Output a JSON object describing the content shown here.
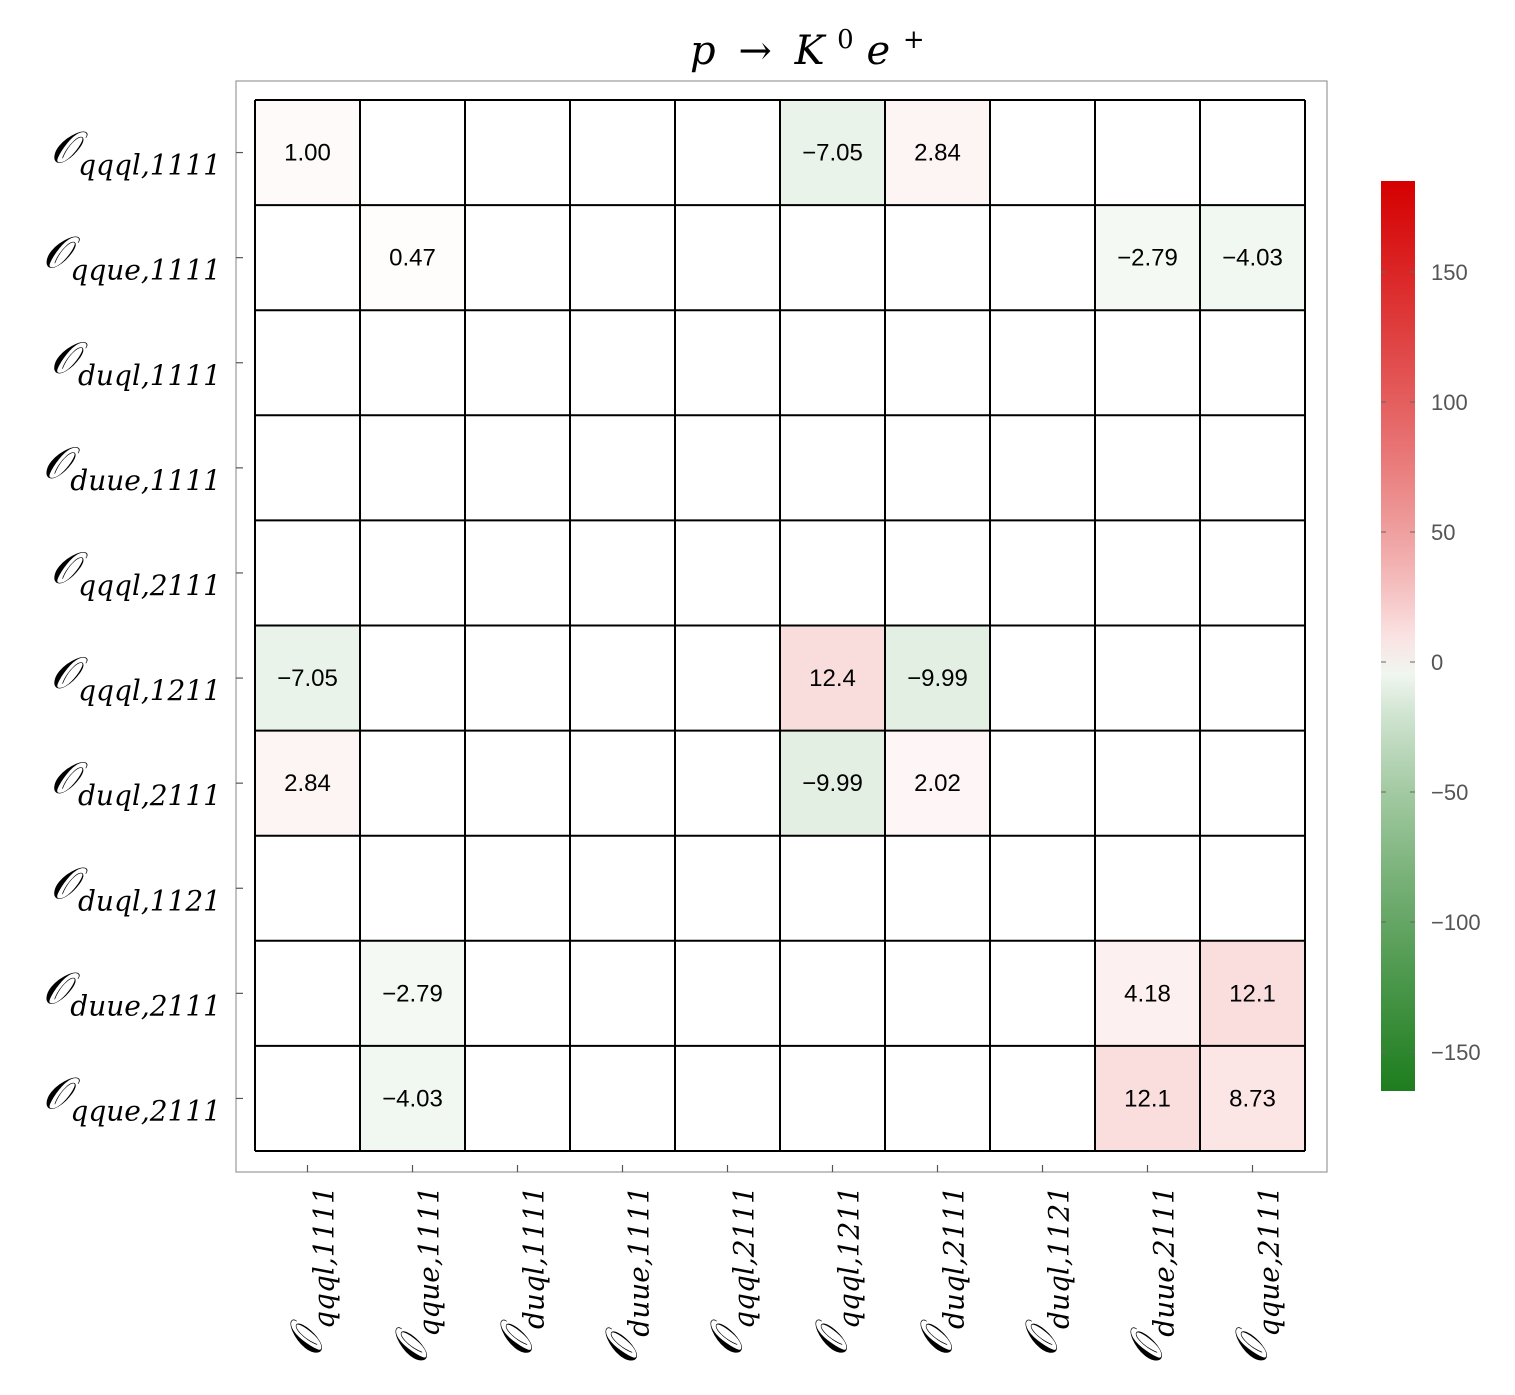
{
  "chart_data": {
    "type": "heatmap",
    "title": "p → K⁰e⁺",
    "title_parts": {
      "p": "p",
      "arrow": "→",
      "K": "K",
      "K_sup": "0",
      "e": "e",
      "e_sup": "+"
    },
    "row_labels": [
      {
        "symbol": "𝒪",
        "sub": "qqql,1111"
      },
      {
        "symbol": "𝒪",
        "sub": "qque,1111"
      },
      {
        "symbol": "𝒪",
        "sub": "duql,1111"
      },
      {
        "symbol": "𝒪",
        "sub": "duue,1111"
      },
      {
        "symbol": "𝒪",
        "sub": "qqql,2111"
      },
      {
        "symbol": "𝒪",
        "sub": "qqql,1211"
      },
      {
        "symbol": "𝒪",
        "sub": "duql,2111"
      },
      {
        "symbol": "𝒪",
        "sub": "duql,1121"
      },
      {
        "symbol": "𝒪",
        "sub": "duue,2111"
      },
      {
        "symbol": "𝒪",
        "sub": "qque,2111"
      }
    ],
    "column_labels": [
      {
        "symbol": "𝒪",
        "sub": "qqql,1111"
      },
      {
        "symbol": "𝒪",
        "sub": "qque,1111"
      },
      {
        "symbol": "𝒪",
        "sub": "duql,1111"
      },
      {
        "symbol": "𝒪",
        "sub": "duue,1111"
      },
      {
        "symbol": "𝒪",
        "sub": "qqql,2111"
      },
      {
        "symbol": "𝒪",
        "sub": "qqql,1211"
      },
      {
        "symbol": "𝒪",
        "sub": "duql,2111"
      },
      {
        "symbol": "𝒪",
        "sub": "duql,1121"
      },
      {
        "symbol": "𝒪",
        "sub": "duue,2111"
      },
      {
        "symbol": "𝒪",
        "sub": "qque,2111"
      }
    ],
    "cells": [
      {
        "row": 0,
        "col": 0,
        "value": 1.0,
        "label": "1.00"
      },
      {
        "row": 0,
        "col": 5,
        "value": -7.05,
        "label": "−7.05"
      },
      {
        "row": 0,
        "col": 6,
        "value": 2.84,
        "label": "2.84"
      },
      {
        "row": 1,
        "col": 1,
        "value": 0.47,
        "label": "0.47"
      },
      {
        "row": 1,
        "col": 8,
        "value": -2.79,
        "label": "−2.79"
      },
      {
        "row": 1,
        "col": 9,
        "value": -4.03,
        "label": "−4.03"
      },
      {
        "row": 5,
        "col": 0,
        "value": -7.05,
        "label": "−7.05"
      },
      {
        "row": 5,
        "col": 5,
        "value": 12.4,
        "label": "12.4"
      },
      {
        "row": 5,
        "col": 6,
        "value": -9.99,
        "label": "−9.99"
      },
      {
        "row": 6,
        "col": 0,
        "value": 2.84,
        "label": "2.84"
      },
      {
        "row": 6,
        "col": 5,
        "value": -9.99,
        "label": "−9.99"
      },
      {
        "row": 6,
        "col": 6,
        "value": 2.02,
        "label": "2.02"
      },
      {
        "row": 8,
        "col": 1,
        "value": -2.79,
        "label": "−2.79"
      },
      {
        "row": 8,
        "col": 8,
        "value": 4.18,
        "label": "4.18"
      },
      {
        "row": 8,
        "col": 9,
        "value": 12.1,
        "label": "12.1"
      },
      {
        "row": 9,
        "col": 1,
        "value": -4.03,
        "label": "−4.03"
      },
      {
        "row": 9,
        "col": 8,
        "value": 12.1,
        "label": "12.1"
      },
      {
        "row": 9,
        "col": 9,
        "value": 8.73,
        "label": "8.73"
      }
    ],
    "colorbar": {
      "range": [
        -165,
        185
      ],
      "ticks": [
        {
          "value": 150,
          "label": "150"
        },
        {
          "value": 100,
          "label": "100"
        },
        {
          "value": 50,
          "label": "50"
        },
        {
          "value": 0,
          "label": "0"
        },
        {
          "value": -50,
          "label": "−50"
        },
        {
          "value": -100,
          "label": "−100"
        },
        {
          "value": -150,
          "label": "−150"
        }
      ],
      "color_positive": "#d50000",
      "color_zero": "#ffffff",
      "color_negative": "#1e7d1e"
    }
  }
}
